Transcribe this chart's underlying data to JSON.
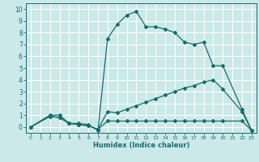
{
  "xlabel": "Humidex (Indice chaleur)",
  "xlim": [
    -0.5,
    23.5
  ],
  "ylim": [
    -0.5,
    10.5
  ],
  "xticks": [
    0,
    1,
    2,
    3,
    4,
    5,
    6,
    7,
    8,
    9,
    10,
    11,
    12,
    13,
    14,
    15,
    16,
    17,
    18,
    19,
    20,
    21,
    22,
    23
  ],
  "yticks": [
    0,
    1,
    2,
    3,
    4,
    5,
    6,
    7,
    8,
    9,
    10
  ],
  "bg_color": "#cce9e9",
  "line_color": "#1a6b6b",
  "grid_color": "#ffffff",
  "line1_x": [
    0,
    2,
    3,
    4,
    5,
    6,
    7,
    8,
    9,
    10,
    11,
    12,
    13,
    14,
    15,
    16,
    17,
    18,
    19,
    20,
    22,
    23
  ],
  "line1_y": [
    0,
    1.0,
    1.0,
    0.3,
    0.3,
    0.2,
    -0.3,
    7.5,
    8.7,
    9.5,
    9.8,
    8.5,
    8.5,
    8.3,
    8.0,
    7.2,
    7.0,
    7.2,
    5.2,
    5.2,
    1.5,
    -0.3
  ],
  "line2_x": [
    0,
    2,
    3,
    4,
    5,
    6,
    7,
    8,
    9,
    10,
    11,
    12,
    13,
    14,
    15,
    16,
    17,
    18,
    19,
    20,
    22,
    23
  ],
  "line2_y": [
    0,
    0.9,
    0.8,
    0.3,
    0.2,
    0.1,
    -0.2,
    1.3,
    1.2,
    1.5,
    1.8,
    2.1,
    2.4,
    2.7,
    3.0,
    3.3,
    3.5,
    3.8,
    4.0,
    3.2,
    1.3,
    -0.3
  ],
  "line3_x": [
    0,
    2,
    3,
    4,
    5,
    6,
    7,
    8,
    9,
    10,
    11,
    12,
    13,
    14,
    15,
    16,
    17,
    18,
    19,
    20,
    22,
    23
  ],
  "line3_y": [
    0,
    0.9,
    0.8,
    0.3,
    0.2,
    0.1,
    -0.2,
    0.5,
    0.5,
    0.5,
    0.5,
    0.5,
    0.5,
    0.5,
    0.5,
    0.5,
    0.5,
    0.5,
    0.5,
    0.5,
    0.5,
    -0.3
  ]
}
